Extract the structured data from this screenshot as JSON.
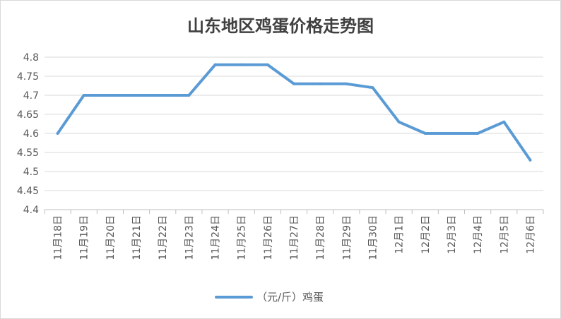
{
  "chart_data": {
    "type": "line",
    "title": "山东地区鸡蛋价格走势图",
    "xlabel": "",
    "ylabel": "",
    "ylim": [
      4.4,
      4.8
    ],
    "yticks": [
      "4.4",
      "4.45",
      "4.5",
      "4.55",
      "4.6",
      "4.65",
      "4.7",
      "4.75",
      "4.8"
    ],
    "categories": [
      "11月18日",
      "11月19日",
      "11月20日",
      "11月21日",
      "11月22日",
      "11月23日",
      "11月24日",
      "11月25日",
      "11月26日",
      "11月27日",
      "11月28日",
      "11月29日",
      "11月30日",
      "12月1日",
      "12月2日",
      "12月3日",
      "12月4日",
      "12月5日",
      "12月6日"
    ],
    "series": [
      {
        "name": "（元/斤）鸡蛋",
        "color": "#5b9bd5",
        "values": [
          4.6,
          4.7,
          4.7,
          4.7,
          4.7,
          4.7,
          4.78,
          4.78,
          4.78,
          4.73,
          4.73,
          4.73,
          4.72,
          4.63,
          4.6,
          4.6,
          4.6,
          4.63,
          4.53
        ]
      }
    ],
    "grid": true,
    "legend_position": "bottom"
  }
}
